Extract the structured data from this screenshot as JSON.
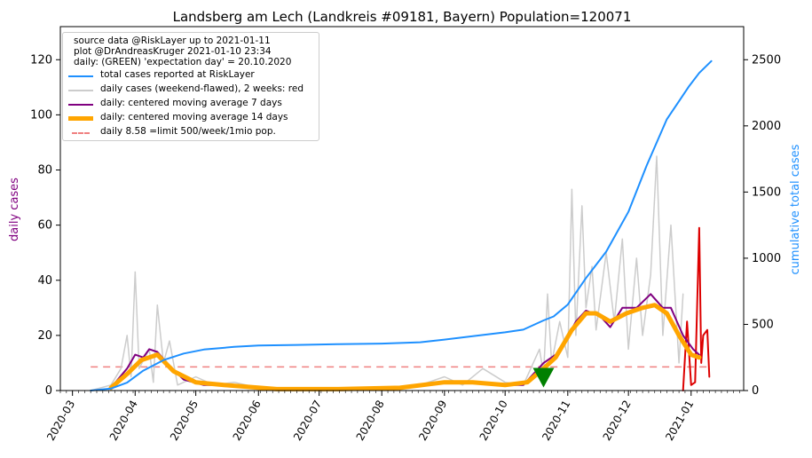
{
  "chart_data": {
    "type": "line",
    "title": "Landsberg am Lech (Landkreis #09181, Bayern) Population=120071",
    "ylabel": "daily cases",
    "y2label": "cumulative total cases",
    "ylim": [
      0,
      132
    ],
    "y2lim": [
      0,
      2750
    ],
    "yticks": [
      0,
      20,
      40,
      60,
      80,
      100,
      120
    ],
    "y2ticks": [
      0,
      500,
      1000,
      1500,
      2000,
      2500
    ],
    "xlim": [
      "2020-02-24",
      "2021-01-27"
    ],
    "xticks": [
      "2020-03",
      "2020-04",
      "2020-05",
      "2020-06",
      "2020-07",
      "2020-08",
      "2020-09",
      "2020-10",
      "2020-11",
      "2020-12",
      "2021-01"
    ],
    "annotations": [
      "source data @RiskLayer up to 2021-01-11",
      "plot @DrAndreasKruger 2021-01-10 23:34",
      "daily: (GREEN) 'expectation day' = 20.10.2020"
    ],
    "legend": {
      "placement": "top-left",
      "entries": [
        {
          "label": "total cases reported at RiskLayer",
          "color": "#1e90ff"
        },
        {
          "label": "daily cases (weekend-flawed), 2 weeks: red",
          "color": "#cccccc"
        },
        {
          "label": "daily: centered moving average 7 days",
          "color": "#800080"
        },
        {
          "label": "daily: centered moving average 14 days",
          "color": "#ffa500"
        },
        {
          "label": "daily 8.58 =limit 500/week/1mio pop.",
          "color": "#f08080"
        }
      ]
    },
    "limit_value": 8.58,
    "limit_range": [
      "2020-03-10",
      "2021-01-11"
    ],
    "expectation_marker": {
      "date": "2020-10-20",
      "value": 5,
      "color": "#008000"
    },
    "series": [
      {
        "name": "total cases reported at RiskLayer",
        "axis": "right",
        "color": "#1e90ff",
        "points": [
          [
            "2020-03-10",
            0
          ],
          [
            "2020-03-20",
            15
          ],
          [
            "2020-03-28",
            60
          ],
          [
            "2020-04-05",
            150
          ],
          [
            "2020-04-15",
            230
          ],
          [
            "2020-04-25",
            280
          ],
          [
            "2020-05-05",
            310
          ],
          [
            "2020-05-20",
            330
          ],
          [
            "2020-06-01",
            340
          ],
          [
            "2020-06-20",
            345
          ],
          [
            "2020-07-10",
            350
          ],
          [
            "2020-08-01",
            355
          ],
          [
            "2020-08-20",
            365
          ],
          [
            "2020-09-01",
            385
          ],
          [
            "2020-09-20",
            420
          ],
          [
            "2020-10-01",
            440
          ],
          [
            "2020-10-10",
            460
          ],
          [
            "2020-10-20",
            530
          ],
          [
            "2020-10-25",
            560
          ],
          [
            "2020-11-01",
            650
          ],
          [
            "2020-11-10",
            850
          ],
          [
            "2020-11-20",
            1050
          ],
          [
            "2020-12-01",
            1350
          ],
          [
            "2020-12-10",
            1700
          ],
          [
            "2020-12-20",
            2050
          ],
          [
            "2020-12-31",
            2300
          ],
          [
            "2021-01-05",
            2400
          ],
          [
            "2021-01-11",
            2490
          ]
        ]
      },
      {
        "name": "daily cases (weekend-flawed), 2 weeks: red",
        "axis": "left",
        "color": "#cccccc",
        "points": [
          [
            "2020-03-10",
            0
          ],
          [
            "2020-03-20",
            2
          ],
          [
            "2020-03-25",
            8
          ],
          [
            "2020-03-28",
            20
          ],
          [
            "2020-03-30",
            5
          ],
          [
            "2020-04-01",
            43
          ],
          [
            "2020-04-03",
            8
          ],
          [
            "2020-04-08",
            15
          ],
          [
            "2020-04-10",
            3
          ],
          [
            "2020-04-12",
            31
          ],
          [
            "2020-04-15",
            10
          ],
          [
            "2020-04-18",
            18
          ],
          [
            "2020-04-22",
            2
          ],
          [
            "2020-05-01",
            5
          ],
          [
            "2020-05-10",
            2
          ],
          [
            "2020-05-20",
            3
          ],
          [
            "2020-06-01",
            1
          ],
          [
            "2020-07-01",
            1
          ],
          [
            "2020-08-01",
            1
          ],
          [
            "2020-08-20",
            2
          ],
          [
            "2020-09-01",
            5
          ],
          [
            "2020-09-10",
            2
          ],
          [
            "2020-09-20",
            8
          ],
          [
            "2020-10-01",
            3
          ],
          [
            "2020-10-10",
            2
          ],
          [
            "2020-10-18",
            15
          ],
          [
            "2020-10-20",
            6
          ],
          [
            "2020-10-22",
            35
          ],
          [
            "2020-10-24",
            10
          ],
          [
            "2020-10-28",
            25
          ],
          [
            "2020-11-01",
            12
          ],
          [
            "2020-11-03",
            73
          ],
          [
            "2020-11-05",
            20
          ],
          [
            "2020-11-08",
            67
          ],
          [
            "2020-11-10",
            30
          ],
          [
            "2020-11-13",
            45
          ],
          [
            "2020-11-15",
            22
          ],
          [
            "2020-11-20",
            50
          ],
          [
            "2020-11-24",
            25
          ],
          [
            "2020-11-28",
            55
          ],
          [
            "2020-12-01",
            15
          ],
          [
            "2020-12-05",
            48
          ],
          [
            "2020-12-08",
            20
          ],
          [
            "2020-12-12",
            42
          ],
          [
            "2020-12-15",
            85
          ],
          [
            "2020-12-18",
            20
          ],
          [
            "2020-12-22",
            60
          ],
          [
            "2020-12-26",
            10
          ],
          [
            "2020-12-28",
            35
          ]
        ]
      },
      {
        "name": "daily cases, last 2 weeks",
        "axis": "left",
        "color": "#dd0000",
        "points": [
          [
            "2020-12-28",
            0
          ],
          [
            "2020-12-30",
            25
          ],
          [
            "2021-01-01",
            2
          ],
          [
            "2021-01-03",
            3
          ],
          [
            "2021-01-05",
            59
          ],
          [
            "2021-01-06",
            10
          ],
          [
            "2021-01-07",
            20
          ],
          [
            "2021-01-09",
            22
          ],
          [
            "2021-01-10",
            5
          ]
        ]
      },
      {
        "name": "daily: centered moving average 7 days",
        "axis": "left",
        "color": "#800080",
        "points": [
          [
            "2020-03-20",
            1
          ],
          [
            "2020-03-28",
            8
          ],
          [
            "2020-04-01",
            13
          ],
          [
            "2020-04-05",
            12
          ],
          [
            "2020-04-08",
            15
          ],
          [
            "2020-04-12",
            14
          ],
          [
            "2020-04-18",
            9
          ],
          [
            "2020-04-25",
            4
          ],
          [
            "2020-05-05",
            2
          ],
          [
            "2020-05-20",
            2
          ],
          [
            "2020-06-10",
            0.5
          ],
          [
            "2020-07-10",
            0.5
          ],
          [
            "2020-08-10",
            1
          ],
          [
            "2020-09-01",
            3
          ],
          [
            "2020-09-15",
            3
          ],
          [
            "2020-10-01",
            2
          ],
          [
            "2020-10-10",
            2
          ],
          [
            "2020-10-20",
            10
          ],
          [
            "2020-10-28",
            14
          ],
          [
            "2020-11-05",
            25
          ],
          [
            "2020-11-10",
            29
          ],
          [
            "2020-11-17",
            27
          ],
          [
            "2020-11-22",
            23
          ],
          [
            "2020-11-28",
            30
          ],
          [
            "2020-12-05",
            30
          ],
          [
            "2020-12-12",
            35
          ],
          [
            "2020-12-18",
            30
          ],
          [
            "2020-12-22",
            30
          ],
          [
            "2020-12-28",
            20
          ],
          [
            "2021-01-02",
            15
          ],
          [
            "2021-01-05",
            13
          ]
        ]
      },
      {
        "name": "daily: centered moving average 14 days",
        "axis": "left",
        "color": "#ffa500",
        "points": [
          [
            "2020-03-20",
            1
          ],
          [
            "2020-03-28",
            6
          ],
          [
            "2020-04-04",
            11
          ],
          [
            "2020-04-12",
            13
          ],
          [
            "2020-04-20",
            7
          ],
          [
            "2020-05-01",
            3
          ],
          [
            "2020-05-15",
            2
          ],
          [
            "2020-06-10",
            0.5
          ],
          [
            "2020-07-10",
            0.5
          ],
          [
            "2020-08-10",
            1
          ],
          [
            "2020-09-01",
            3
          ],
          [
            "2020-09-15",
            3
          ],
          [
            "2020-10-01",
            2
          ],
          [
            "2020-10-12",
            3
          ],
          [
            "2020-10-20",
            8
          ],
          [
            "2020-10-26",
            12
          ],
          [
            "2020-11-03",
            22
          ],
          [
            "2020-11-10",
            28
          ],
          [
            "2020-11-15",
            28
          ],
          [
            "2020-11-22",
            25
          ],
          [
            "2020-11-30",
            28
          ],
          [
            "2020-12-08",
            30
          ],
          [
            "2020-12-14",
            31
          ],
          [
            "2020-12-20",
            28
          ],
          [
            "2020-12-26",
            20
          ],
          [
            "2021-01-01",
            13
          ],
          [
            "2021-01-05",
            12
          ]
        ]
      }
    ]
  }
}
